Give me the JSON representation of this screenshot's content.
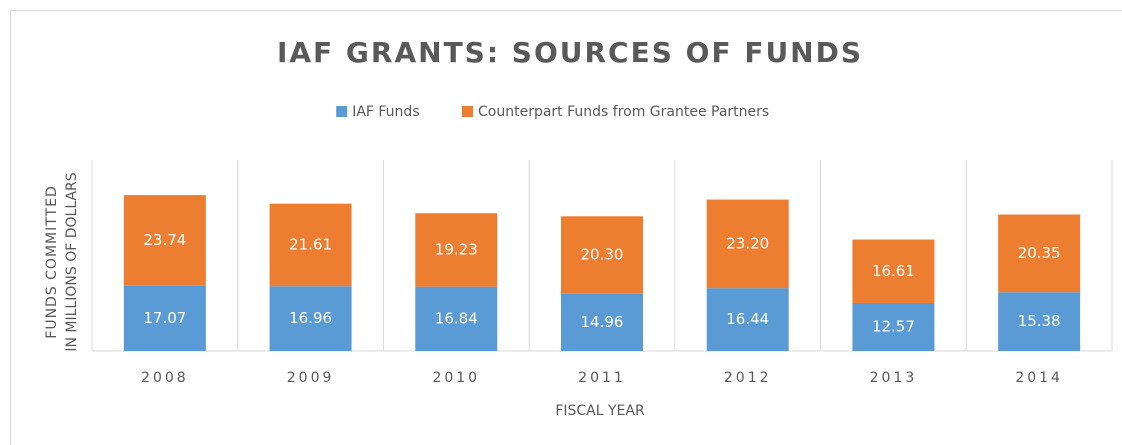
{
  "chart_data": {
    "type": "stacked_bar",
    "title": "IAF GRANTS: SOURCES OF FUNDS",
    "categories": [
      "2008",
      "2009",
      "2010",
      "2011",
      "2012",
      "2013",
      "2014"
    ],
    "series": [
      {
        "name": "IAF Funds",
        "color": "#5b9bd5",
        "values": [
          17.07,
          16.96,
          16.84,
          14.96,
          16.44,
          12.57,
          15.38
        ],
        "value_labels": [
          "17.07",
          "16.96",
          "16.84",
          "14.96",
          "16.44",
          "12.57",
          "15.38"
        ]
      },
      {
        "name": "Counterpart Funds from Grantee Partners",
        "color": "#ed7d31",
        "values": [
          23.74,
          21.61,
          19.23,
          20.3,
          23.2,
          16.61,
          20.35
        ],
        "value_labels": [
          "23.74",
          "21.61",
          "19.23",
          "20.30",
          "23.20",
          "16.61",
          "20.35"
        ]
      }
    ],
    "xlabel": "FISCAL YEAR",
    "ylabel": [
      "FUNDS COMMITTED",
      "IN MILLIONS OF DOLLARS"
    ],
    "ylim": [
      0,
      50
    ],
    "legend": "top"
  }
}
